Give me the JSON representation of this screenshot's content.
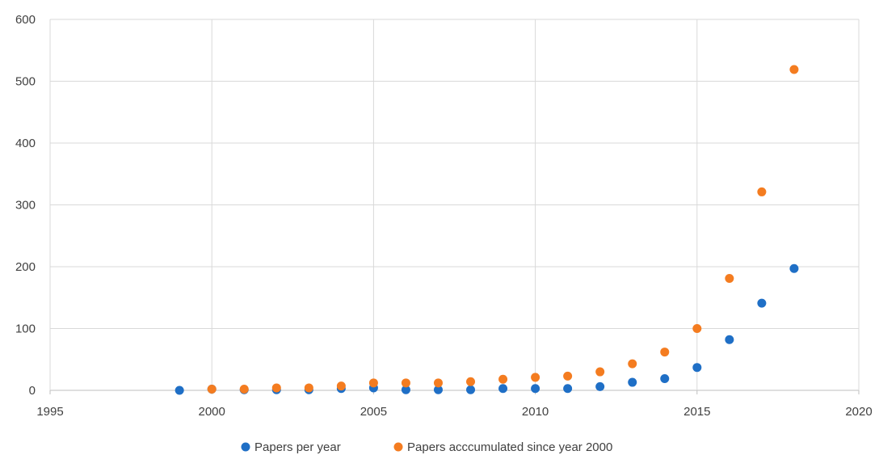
{
  "chart_data": {
    "type": "scatter",
    "title": "",
    "xlabel": "",
    "ylabel": "",
    "xlim": [
      1995,
      2020
    ],
    "ylim": [
      0,
      600
    ],
    "x_ticks": [
      1995,
      2000,
      2005,
      2010,
      2015,
      2020
    ],
    "y_ticks": [
      0,
      100,
      200,
      300,
      400,
      500,
      600
    ],
    "grid": true,
    "legend_position": "bottom",
    "series": [
      {
        "name": "Papers per year",
        "color": "#1F6FC6",
        "points": [
          {
            "x": 1999,
            "y": 0
          },
          {
            "x": 2000,
            "y": 2
          },
          {
            "x": 2001,
            "y": 1
          },
          {
            "x": 2002,
            "y": 1
          },
          {
            "x": 2003,
            "y": 1
          },
          {
            "x": 2004,
            "y": 3
          },
          {
            "x": 2005,
            "y": 4
          },
          {
            "x": 2006,
            "y": 1
          },
          {
            "x": 2007,
            "y": 1
          },
          {
            "x": 2008,
            "y": 1
          },
          {
            "x": 2009,
            "y": 3
          },
          {
            "x": 2010,
            "y": 3
          },
          {
            "x": 2011,
            "y": 3
          },
          {
            "x": 2012,
            "y": 6
          },
          {
            "x": 2013,
            "y": 13
          },
          {
            "x": 2014,
            "y": 19
          },
          {
            "x": 2015,
            "y": 37
          },
          {
            "x": 2016,
            "y": 82
          },
          {
            "x": 2017,
            "y": 141
          },
          {
            "x": 2018,
            "y": 197
          }
        ]
      },
      {
        "name": "Papers acccumulated since year 2000",
        "color": "#F47C20",
        "points": [
          {
            "x": 2000,
            "y": 2
          },
          {
            "x": 2001,
            "y": 2
          },
          {
            "x": 2002,
            "y": 4
          },
          {
            "x": 2003,
            "y": 4
          },
          {
            "x": 2004,
            "y": 7
          },
          {
            "x": 2005,
            "y": 12
          },
          {
            "x": 2006,
            "y": 12
          },
          {
            "x": 2007,
            "y": 12
          },
          {
            "x": 2008,
            "y": 14
          },
          {
            "x": 2009,
            "y": 18
          },
          {
            "x": 2010,
            "y": 21
          },
          {
            "x": 2011,
            "y": 23
          },
          {
            "x": 2012,
            "y": 30
          },
          {
            "x": 2013,
            "y": 43
          },
          {
            "x": 2014,
            "y": 62
          },
          {
            "x": 2015,
            "y": 100
          },
          {
            "x": 2016,
            "y": 181
          },
          {
            "x": 2017,
            "y": 321
          },
          {
            "x": 2018,
            "y": 519
          }
        ]
      }
    ]
  }
}
